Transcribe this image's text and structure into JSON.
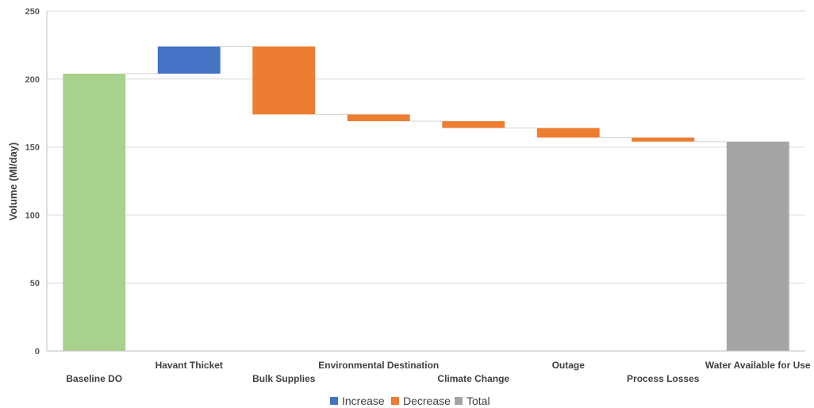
{
  "chart_data": {
    "type": "bar",
    "subtype": "waterfall",
    "title": "",
    "xlabel": "",
    "ylabel": "Volume (Ml/day)",
    "ylim": [
      0,
      250
    ],
    "yticks": [
      "0",
      "50",
      "100",
      "150",
      "200",
      "250"
    ],
    "grid": true,
    "legend_position": "bottom",
    "categories": [
      "Baseline DO",
      "Havant Thicket",
      "Bulk Supplies",
      "Environmental Destination",
      "Climate Change",
      "Outage",
      "Process Losses",
      "Water Available for Use"
    ],
    "bars": [
      {
        "category": "Baseline DO",
        "kind": "total",
        "start": 0,
        "end": 204
      },
      {
        "category": "Havant Thicket",
        "kind": "increase",
        "start": 204,
        "end": 224
      },
      {
        "category": "Bulk Supplies",
        "kind": "decrease",
        "start": 224,
        "end": 174
      },
      {
        "category": "Environmental Destination",
        "kind": "decrease",
        "start": 174,
        "end": 169
      },
      {
        "category": "Climate Change",
        "kind": "decrease",
        "start": 169,
        "end": 164
      },
      {
        "category": "Outage",
        "kind": "decrease",
        "start": 164,
        "end": 157
      },
      {
        "category": "Process Losses",
        "kind": "decrease",
        "start": 157,
        "end": 154
      },
      {
        "category": "Water Available for Use",
        "kind": "total",
        "start": 0,
        "end": 154
      }
    ],
    "legend": [
      {
        "key": "increase",
        "label": "Increase",
        "color": "#4472C4"
      },
      {
        "key": "decrease",
        "label": "Decrease",
        "color": "#ED7D31"
      },
      {
        "key": "total",
        "label": "Total",
        "color": "#A5A5A5"
      }
    ],
    "colors": {
      "baseline": "#A9D18E",
      "increase": "#4472C4",
      "decrease": "#ED7D31",
      "total": "#A5A5A5"
    }
  }
}
